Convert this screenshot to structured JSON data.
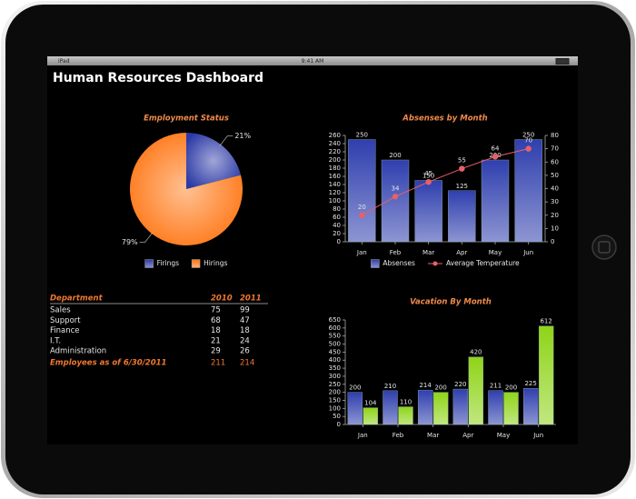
{
  "status": {
    "device": "iPad",
    "time": "9:41 AM"
  },
  "header": {
    "title": "Human Resources Dashboard"
  },
  "chart_data": [
    {
      "type": "pie",
      "title": "Employment Status",
      "categories": [
        "Firings",
        "Hirings"
      ],
      "values": [
        21,
        79
      ],
      "value_labels": [
        "21%",
        "79%"
      ],
      "colors": [
        "#2c3aa6",
        "#ff7410"
      ]
    },
    {
      "type": "bar",
      "title": "Absenses by Month",
      "categories": [
        "Jan",
        "Feb",
        "Mar",
        "Apr",
        "May",
        "Jun"
      ],
      "series": [
        {
          "name": "Absenses",
          "color": "#2f3fae",
          "values": [
            250,
            200,
            150,
            125,
            200,
            250
          ]
        },
        {
          "name": "Average Temperature",
          "type": "line",
          "axis": "y2",
          "color": "#e8606a",
          "values": [
            20,
            34,
            45,
            55,
            64,
            70
          ]
        }
      ],
      "ylim": [
        0,
        260
      ],
      "yticks": [
        0,
        20,
        40,
        60,
        80,
        100,
        120,
        140,
        160,
        180,
        200,
        220,
        240,
        260
      ],
      "y2lim": [
        0,
        80
      ],
      "y2ticks": [
        0,
        10,
        20,
        30,
        40,
        50,
        60,
        70,
        80
      ]
    },
    {
      "type": "bar",
      "title": "Vacation By Month",
      "categories": [
        "Jan",
        "Feb",
        "Mar",
        "Apr",
        "May",
        "Jun"
      ],
      "series": [
        {
          "color": "#2f3fae",
          "values": [
            200,
            210,
            214,
            220,
            211,
            225
          ]
        },
        {
          "color": "#8fd418",
          "values": [
            104,
            110,
            200,
            420,
            200,
            612
          ]
        }
      ],
      "ylim": [
        0,
        650
      ],
      "yticks": [
        0,
        50,
        100,
        150,
        200,
        250,
        300,
        350,
        400,
        450,
        500,
        550,
        600,
        650
      ]
    }
  ],
  "table": {
    "header": [
      "Department",
      "2010",
      "2011"
    ],
    "rows": [
      [
        "Sales",
        75,
        99
      ],
      [
        "Support",
        68,
        47
      ],
      [
        "Finance",
        18,
        18
      ],
      [
        "I.T.",
        21,
        24
      ],
      [
        "Administration",
        29,
        26
      ]
    ],
    "footer": [
      "Employees as of 6/30/2011",
      211,
      214
    ]
  }
}
